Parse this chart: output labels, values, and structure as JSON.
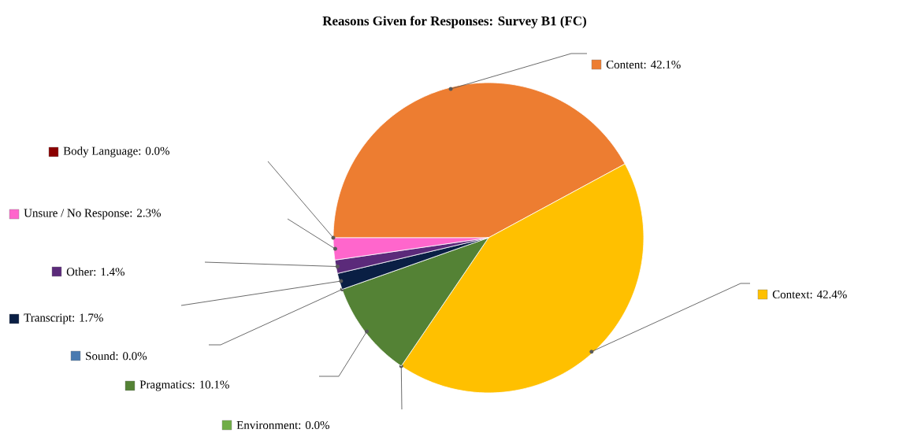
{
  "chart_data": {
    "type": "pie",
    "title": "Reasons Given for Responses: Survey B1 (FC)",
    "categories": [
      "Content: 42.1%",
      "Context: 42.4%",
      "Environment: 0.0%",
      "Pragmatics: 10.1%",
      "Sound: 0.0%",
      "Transcript: 1.7%",
      "Other: 1.4%",
      "Unsure / No Response: 2.3%",
      "Body Language: 0.0%"
    ],
    "values": [
      42.1,
      42.4,
      0.0,
      10.1,
      0.0,
      1.7,
      1.4,
      2.3,
      0.0
    ],
    "colors": [
      "#ed7d31",
      "#ffc000",
      "#70ad47",
      "#548235",
      "#4a7ab0",
      "#0a1f44",
      "#5b2a7a",
      "#ff66cc",
      "#8b0000"
    ],
    "legend": "left"
  }
}
